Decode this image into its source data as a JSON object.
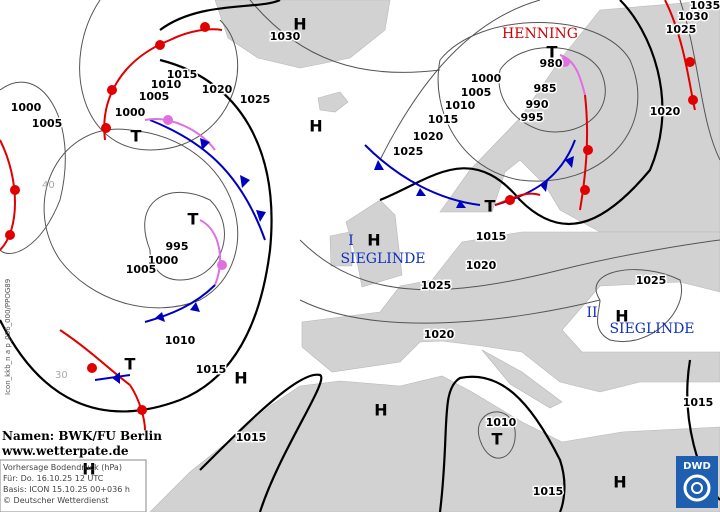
{
  "isobar_labels": [
    "1030",
    "1035",
    "1030",
    "1025",
    "1015",
    "1010",
    "1005",
    "1000",
    "1020",
    "1025",
    "1000",
    "1005",
    "980",
    "1000",
    "1005",
    "1010",
    "985",
    "990",
    "995",
    "1015",
    "1020",
    "1025",
    "1020",
    "995",
    "1000",
    "1005",
    "1015",
    "1020",
    "1025",
    "1025",
    "1020",
    "1010",
    "1015",
    "1015",
    "1010",
    "1015",
    "1015"
  ],
  "centers": [
    "H",
    "H",
    "T",
    "T",
    "T",
    "T",
    "H",
    "H",
    "H",
    "H",
    "T",
    "T",
    "H",
    "H"
  ],
  "system_names": {
    "henning": "HENNING",
    "sieglinde_1_number": "I",
    "sieglinde_1": "SIEGLINDE",
    "sieglinde_2_number": "II",
    "sieglinde_2": "SIEGLINDE"
  },
  "latitude_labels": [
    "40",
    "30"
  ],
  "credits": {
    "names": "Namen: BWK/FU Berlin",
    "website": "www.wetterpate.de"
  },
  "legend": {
    "title": "Vorhersage Bodendruck (hPa)",
    "valid": "Für:  Do. 16.10.25  12 UTC",
    "base": "Basis: ICON  15.10.25 00+036 h",
    "copyright": "© Deutscher Wetterdienst"
  },
  "side_label": "Icon_kkb_n a p_036_000/PPOG89",
  "logo": "DWD"
}
